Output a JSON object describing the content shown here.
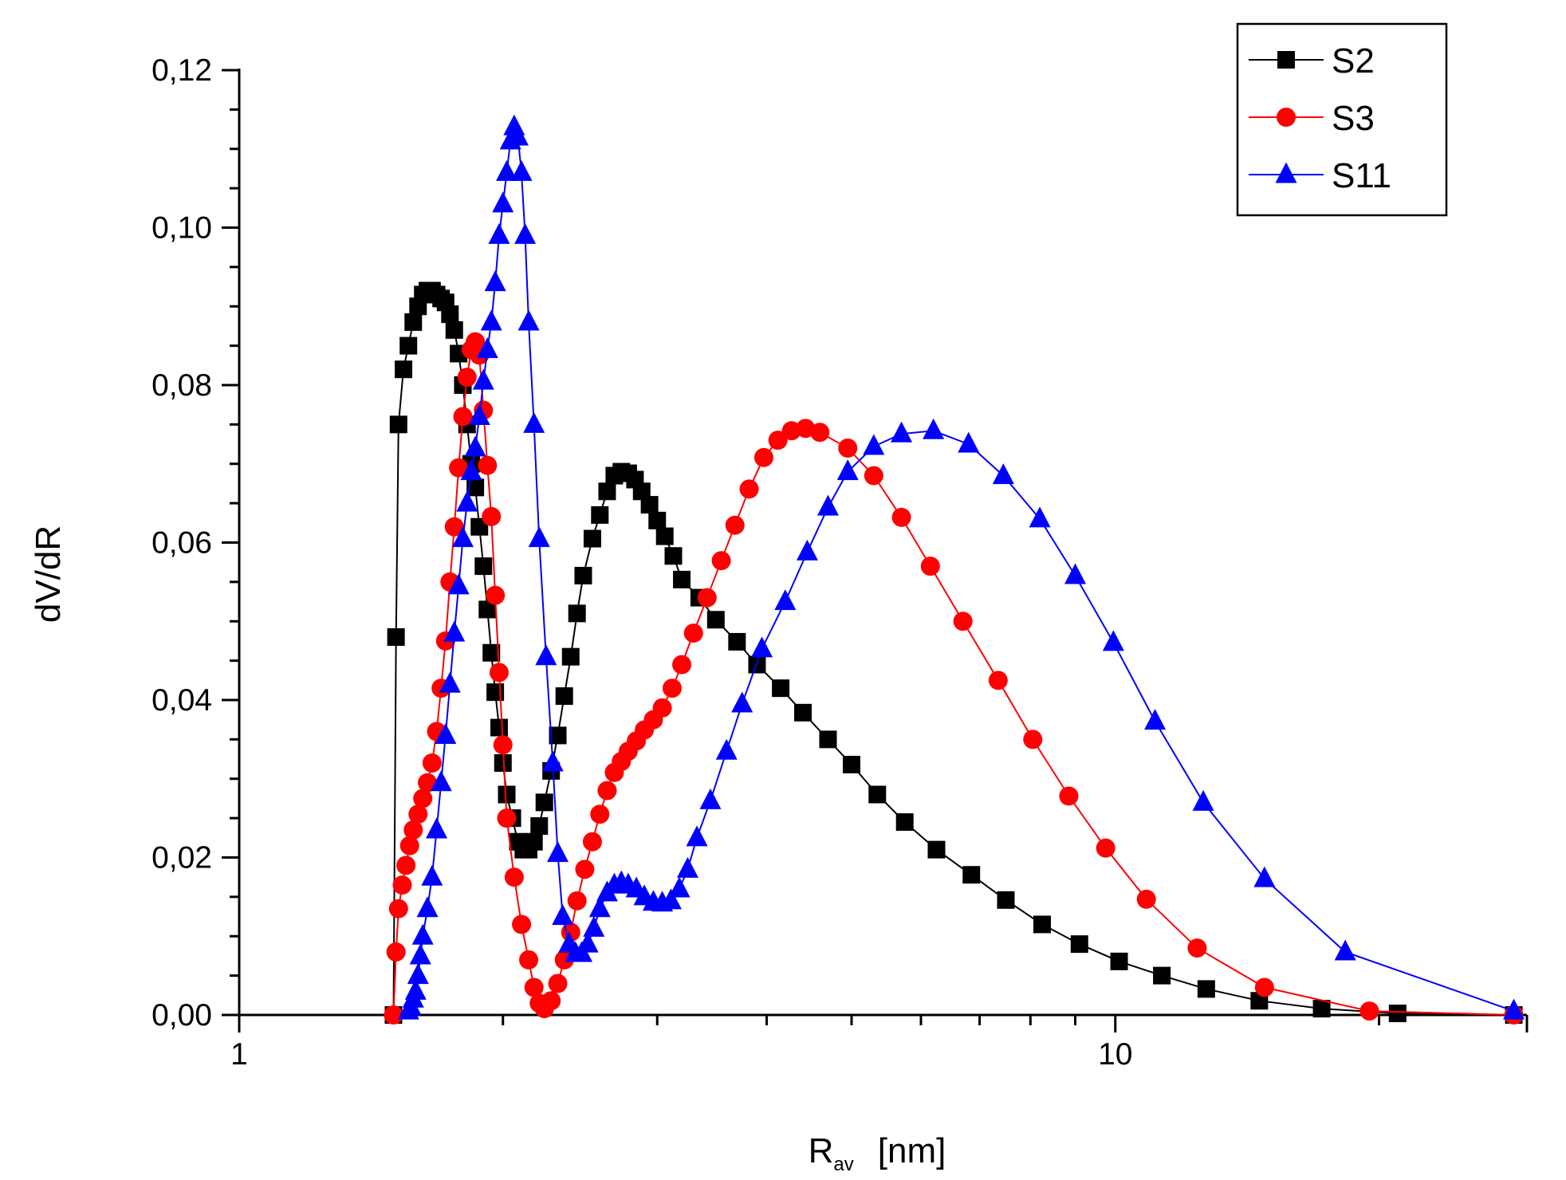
{
  "chart_data": {
    "type": "line",
    "title": "",
    "xlabel_main": "R",
    "xlabel_sub": "av",
    "xlabel_unit": "[nm]",
    "ylabel": "dV/dR",
    "xscale": "log",
    "xlim": [
      1,
      29.5
    ],
    "ylim": [
      0,
      0.12
    ],
    "yticks": [
      "0,00",
      "0,02",
      "0,04",
      "0,06",
      "0,08",
      "0,10",
      "0,12"
    ],
    "xticks": [
      "1",
      "10"
    ],
    "legend_position": "top-right",
    "series": [
      {
        "name": "S2",
        "color": "#000000",
        "marker": "square",
        "points": [
          [
            1.5,
            0.0
          ],
          [
            1.51,
            0.048
          ],
          [
            1.52,
            0.075
          ],
          [
            1.54,
            0.082
          ],
          [
            1.56,
            0.085
          ],
          [
            1.58,
            0.088
          ],
          [
            1.6,
            0.09
          ],
          [
            1.62,
            0.0915
          ],
          [
            1.64,
            0.092
          ],
          [
            1.66,
            0.092
          ],
          [
            1.68,
            0.0915
          ],
          [
            1.7,
            0.091
          ],
          [
            1.72,
            0.0905
          ],
          [
            1.74,
            0.089
          ],
          [
            1.76,
            0.087
          ],
          [
            1.78,
            0.084
          ],
          [
            1.8,
            0.08
          ],
          [
            1.82,
            0.075
          ],
          [
            1.84,
            0.07
          ],
          [
            1.86,
            0.067
          ],
          [
            1.88,
            0.062
          ],
          [
            1.9,
            0.057
          ],
          [
            1.92,
            0.0515
          ],
          [
            1.94,
            0.046
          ],
          [
            1.96,
            0.041
          ],
          [
            1.98,
            0.0365
          ],
          [
            2.0,
            0.032
          ],
          [
            2.02,
            0.028
          ],
          [
            2.05,
            0.025
          ],
          [
            2.08,
            0.022
          ],
          [
            2.11,
            0.021
          ],
          [
            2.14,
            0.021
          ],
          [
            2.17,
            0.022
          ],
          [
            2.2,
            0.024
          ],
          [
            2.23,
            0.027
          ],
          [
            2.27,
            0.031
          ],
          [
            2.31,
            0.0355
          ],
          [
            2.35,
            0.0405
          ],
          [
            2.39,
            0.0455
          ],
          [
            2.43,
            0.051
          ],
          [
            2.47,
            0.0558
          ],
          [
            2.53,
            0.0605
          ],
          [
            2.58,
            0.0635
          ],
          [
            2.63,
            0.0665
          ],
          [
            2.68,
            0.0685
          ],
          [
            2.73,
            0.069
          ],
          [
            2.78,
            0.0688
          ],
          [
            2.83,
            0.068
          ],
          [
            2.88,
            0.0665
          ],
          [
            2.94,
            0.0648
          ],
          [
            3.0,
            0.0628
          ],
          [
            3.06,
            0.0608
          ],
          [
            3.13,
            0.0583
          ],
          [
            3.2,
            0.0553
          ],
          [
            3.35,
            0.053
          ],
          [
            3.5,
            0.0502
          ],
          [
            3.7,
            0.0474
          ],
          [
            3.9,
            0.0445
          ],
          [
            4.15,
            0.0415
          ],
          [
            4.4,
            0.0384
          ],
          [
            4.7,
            0.035
          ],
          [
            5.0,
            0.0318
          ],
          [
            5.35,
            0.028
          ],
          [
            5.75,
            0.0245
          ],
          [
            6.25,
            0.021
          ],
          [
            6.85,
            0.0178
          ],
          [
            7.5,
            0.0146
          ],
          [
            8.25,
            0.0115
          ],
          [
            9.1,
            0.009
          ],
          [
            10.1,
            0.0068
          ],
          [
            11.3,
            0.005
          ],
          [
            12.7,
            0.0033
          ],
          [
            14.6,
            0.0018
          ],
          [
            17.2,
            0.0008
          ],
          [
            21.0,
            0.0002
          ],
          [
            28.5,
            0.0
          ]
        ]
      },
      {
        "name": "S3",
        "color": "#ff0000",
        "marker": "circle",
        "points": [
          [
            1.5,
            0.0
          ],
          [
            1.51,
            0.008
          ],
          [
            1.52,
            0.0135
          ],
          [
            1.535,
            0.0165
          ],
          [
            1.55,
            0.019
          ],
          [
            1.565,
            0.0215
          ],
          [
            1.58,
            0.0235
          ],
          [
            1.6,
            0.0255
          ],
          [
            1.62,
            0.0275
          ],
          [
            1.64,
            0.0295
          ],
          [
            1.66,
            0.032
          ],
          [
            1.68,
            0.036
          ],
          [
            1.7,
            0.0415
          ],
          [
            1.72,
            0.0475
          ],
          [
            1.74,
            0.055
          ],
          [
            1.76,
            0.062
          ],
          [
            1.78,
            0.0695
          ],
          [
            1.8,
            0.076
          ],
          [
            1.82,
            0.081
          ],
          [
            1.84,
            0.0845
          ],
          [
            1.86,
            0.0855
          ],
          [
            1.88,
            0.0838
          ],
          [
            1.9,
            0.0768
          ],
          [
            1.92,
            0.0698
          ],
          [
            1.94,
            0.0633
          ],
          [
            1.96,
            0.0533
          ],
          [
            1.98,
            0.0435
          ],
          [
            2.0,
            0.0343
          ],
          [
            2.02,
            0.025
          ],
          [
            2.06,
            0.0175
          ],
          [
            2.1,
            0.0115
          ],
          [
            2.14,
            0.007
          ],
          [
            2.17,
            0.0035
          ],
          [
            2.2,
            0.0015
          ],
          [
            2.23,
            0.0008
          ],
          [
            2.27,
            0.0018
          ],
          [
            2.31,
            0.004
          ],
          [
            2.35,
            0.007
          ],
          [
            2.39,
            0.0105
          ],
          [
            2.43,
            0.0145
          ],
          [
            2.48,
            0.0185
          ],
          [
            2.53,
            0.022
          ],
          [
            2.58,
            0.0255
          ],
          [
            2.63,
            0.0285
          ],
          [
            2.68,
            0.0308
          ],
          [
            2.73,
            0.0322
          ],
          [
            2.78,
            0.0335
          ],
          [
            2.84,
            0.0348
          ],
          [
            2.9,
            0.0362
          ],
          [
            2.97,
            0.0375
          ],
          [
            3.04,
            0.039
          ],
          [
            3.12,
            0.0415
          ],
          [
            3.2,
            0.0445
          ],
          [
            3.3,
            0.0485
          ],
          [
            3.42,
            0.053
          ],
          [
            3.55,
            0.0577
          ],
          [
            3.68,
            0.0622
          ],
          [
            3.82,
            0.0668
          ],
          [
            3.97,
            0.0708
          ],
          [
            4.12,
            0.073
          ],
          [
            4.27,
            0.0742
          ],
          [
            4.43,
            0.0745
          ],
          [
            4.6,
            0.074
          ],
          [
            4.95,
            0.072
          ],
          [
            5.3,
            0.0685
          ],
          [
            5.7,
            0.0632
          ],
          [
            6.15,
            0.057
          ],
          [
            6.7,
            0.05
          ],
          [
            7.35,
            0.0425
          ],
          [
            8.05,
            0.035
          ],
          [
            8.85,
            0.0278
          ],
          [
            9.75,
            0.0212
          ],
          [
            10.85,
            0.0147
          ],
          [
            12.4,
            0.0085
          ],
          [
            14.8,
            0.0035
          ],
          [
            19.5,
            0.0005
          ],
          [
            28.5,
            0.0
          ]
        ]
      },
      {
        "name": "S11",
        "color": "#0000ff",
        "marker": "triangle",
        "points": [
          [
            1.56,
            0.0005
          ],
          [
            1.57,
            0.001
          ],
          [
            1.58,
            0.002
          ],
          [
            1.59,
            0.003
          ],
          [
            1.6,
            0.005
          ],
          [
            1.61,
            0.0075
          ],
          [
            1.62,
            0.01
          ],
          [
            1.64,
            0.0135
          ],
          [
            1.66,
            0.0175
          ],
          [
            1.68,
            0.0235
          ],
          [
            1.7,
            0.0295
          ],
          [
            1.72,
            0.0355
          ],
          [
            1.74,
            0.042
          ],
          [
            1.76,
            0.0485
          ],
          [
            1.78,
            0.0545
          ],
          [
            1.8,
            0.0605
          ],
          [
            1.82,
            0.065
          ],
          [
            1.84,
            0.069
          ],
          [
            1.86,
            0.072
          ],
          [
            1.88,
            0.076
          ],
          [
            1.9,
            0.0805
          ],
          [
            1.92,
            0.0845
          ],
          [
            1.94,
            0.088
          ],
          [
            1.96,
            0.093
          ],
          [
            1.98,
            0.099
          ],
          [
            2.0,
            0.103
          ],
          [
            2.02,
            0.107
          ],
          [
            2.04,
            0.111
          ],
          [
            2.06,
            0.1128
          ],
          [
            2.08,
            0.1115
          ],
          [
            2.1,
            0.107
          ],
          [
            2.12,
            0.099
          ],
          [
            2.14,
            0.088
          ],
          [
            2.17,
            0.075
          ],
          [
            2.2,
            0.0605
          ],
          [
            2.24,
            0.0455
          ],
          [
            2.28,
            0.032
          ],
          [
            2.31,
            0.0205
          ],
          [
            2.34,
            0.0125
          ],
          [
            2.38,
            0.009
          ],
          [
            2.42,
            0.0078
          ],
          [
            2.46,
            0.0078
          ],
          [
            2.5,
            0.009
          ],
          [
            2.54,
            0.011
          ],
          [
            2.58,
            0.0135
          ],
          [
            2.63,
            0.0155
          ],
          [
            2.68,
            0.0165
          ],
          [
            2.73,
            0.0168
          ],
          [
            2.78,
            0.0165
          ],
          [
            2.84,
            0.016
          ],
          [
            2.9,
            0.015
          ],
          [
            2.97,
            0.0143
          ],
          [
            3.04,
            0.0142
          ],
          [
            3.11,
            0.0145
          ],
          [
            3.18,
            0.016
          ],
          [
            3.25,
            0.0185
          ],
          [
            3.33,
            0.0225
          ],
          [
            3.45,
            0.0272
          ],
          [
            3.6,
            0.0335
          ],
          [
            3.75,
            0.0395
          ],
          [
            3.95,
            0.0465
          ],
          [
            4.2,
            0.0525
          ],
          [
            4.45,
            0.0588
          ],
          [
            4.7,
            0.0645
          ],
          [
            4.95,
            0.069
          ],
          [
            5.3,
            0.0722
          ],
          [
            5.7,
            0.0738
          ],
          [
            6.2,
            0.0742
          ],
          [
            6.8,
            0.0725
          ],
          [
            7.45,
            0.0685
          ],
          [
            8.2,
            0.063
          ],
          [
            9.0,
            0.0558
          ],
          [
            9.95,
            0.0473
          ],
          [
            11.1,
            0.0373
          ],
          [
            12.6,
            0.027
          ],
          [
            14.8,
            0.0173
          ],
          [
            18.3,
            0.008
          ],
          [
            28.5,
            0.0005
          ]
        ]
      }
    ]
  }
}
